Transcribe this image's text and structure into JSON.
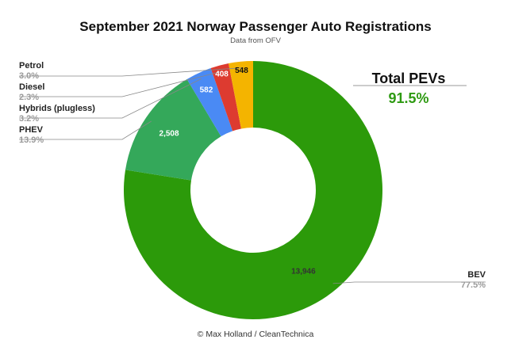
{
  "chart_data": {
    "type": "donut",
    "title": "September 2021 Norway Passenger Auto Registrations",
    "subtitle": "Data from OFV",
    "credit": "© Max Holland / CleanTechnica",
    "slices": [
      {
        "name": "BEV",
        "value": 13946,
        "value_label": "13,946",
        "percent_label": "77.5%",
        "color": "#2c9a0a",
        "label_color": "#333333"
      },
      {
        "name": "PHEV",
        "value": 2508,
        "value_label": "2,508",
        "percent_label": "13.9%",
        "color": "#34a85a",
        "label_color": "#ffffff"
      },
      {
        "name": "Hybrids (plugless)",
        "value": 582,
        "value_label": "582",
        "percent_label": "3.2%",
        "color": "#4a8af4",
        "label_color": "#ffffff"
      },
      {
        "name": "Diesel",
        "value": 408,
        "value_label": "408",
        "percent_label": "2.3%",
        "color": "#dd3b30",
        "label_color": "#ffffff"
      },
      {
        "name": "Petrol",
        "value": 548,
        "value_label": "548",
        "percent_label": "3.0%",
        "color": "#f4b400",
        "label_color": "#111111"
      }
    ],
    "legend_placement": "left"
  },
  "total_pevs": {
    "title": "Total PEVs",
    "value": "91.5%",
    "color": "#2e9a12"
  }
}
